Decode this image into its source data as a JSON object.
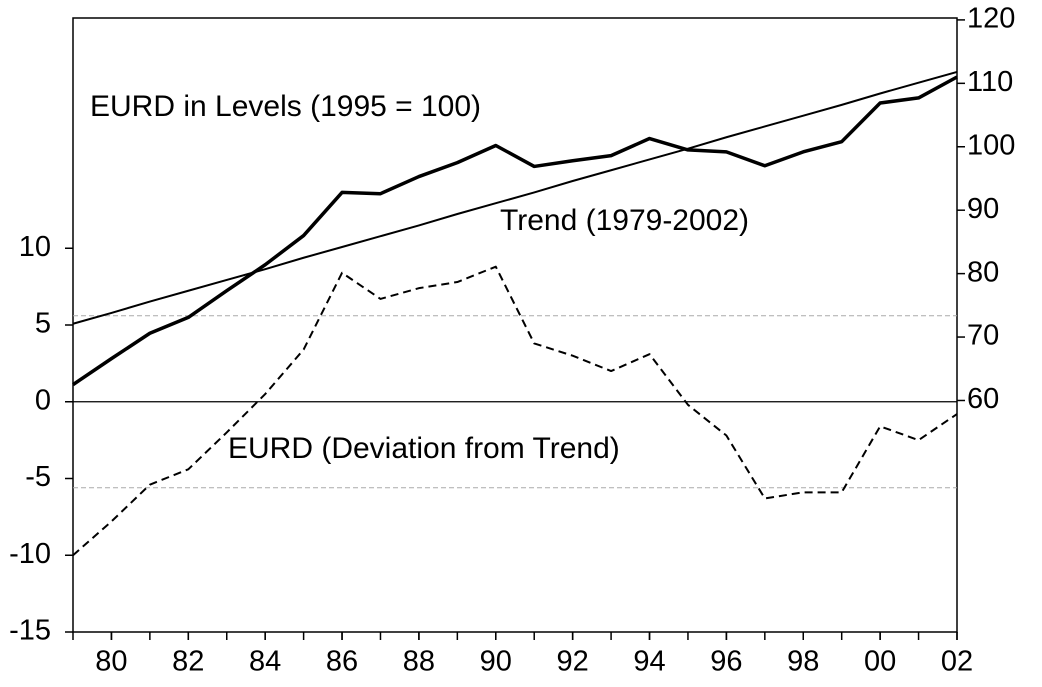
{
  "chart_data": {
    "type": "line",
    "annotations": [
      "EURD in Levels (1995 = 100)",
      "Trend (1979-2002)",
      "EURD (Deviation from Trend)"
    ],
    "x": [
      1979,
      1980,
      1981,
      1982,
      1983,
      1984,
      1985,
      1986,
      1987,
      1988,
      1989,
      1990,
      1991,
      1992,
      1993,
      1994,
      1995,
      1996,
      1997,
      1998,
      1999,
      2000,
      2001,
      2002
    ],
    "series": [
      {
        "name": "EURD in Levels (1995 = 100)",
        "axis": "y2",
        "color": "#000000",
        "style": "solid",
        "width": 3.5,
        "values": [
          62.5,
          66.6,
          70.6,
          73.1,
          77.3,
          81.4,
          86.0,
          92.8,
          92.6,
          95.3,
          97.5,
          100.2,
          96.9,
          97.8,
          98.6,
          101.3,
          99.5,
          99.2,
          97.0,
          99.2,
          100.8,
          106.9,
          107.7,
          111.0
        ]
      },
      {
        "name": "Trend (1979-2002)",
        "axis": "y2",
        "color": "#000000",
        "style": "solid",
        "width": 2,
        "values": [
          72.1,
          73.8,
          75.6,
          77.3,
          79.0,
          80.7,
          82.5,
          84.2,
          85.9,
          87.6,
          89.4,
          91.1,
          92.8,
          94.6,
          96.3,
          98.0,
          99.7,
          101.5,
          103.2,
          104.9,
          106.6,
          108.4,
          110.1,
          111.8
        ]
      },
      {
        "name": "EURD (Deviation from Trend)",
        "axis": "y",
        "color": "#000000",
        "style": "dashed",
        "width": 2,
        "values": [
          -10.0,
          -7.8,
          -5.4,
          -4.4,
          -2.0,
          0.5,
          3.4,
          8.4,
          6.7,
          7.4,
          7.8,
          8.8,
          3.8,
          3.0,
          2.0,
          3.1,
          -0.2,
          -2.2,
          -6.3,
          -5.9,
          -5.9,
          -1.6,
          -2.5,
          -0.8
        ]
      }
    ],
    "xlim": [
      1979,
      2002
    ],
    "xticks": [
      {
        "value": 1980,
        "label": "80"
      },
      {
        "value": 1982,
        "label": "82"
      },
      {
        "value": 1984,
        "label": "84"
      },
      {
        "value": 1986,
        "label": "86"
      },
      {
        "value": 1988,
        "label": "88"
      },
      {
        "value": 1990,
        "label": "90"
      },
      {
        "value": 1992,
        "label": "92"
      },
      {
        "value": 1994,
        "label": "94"
      },
      {
        "value": 1996,
        "label": "96"
      },
      {
        "value": 1998,
        "label": "98"
      },
      {
        "value": 2000,
        "label": "00"
      },
      {
        "value": 2002,
        "label": "02"
      }
    ],
    "ylim": [
      -15,
      25
    ],
    "yticks": [
      -15,
      -10,
      -5,
      0,
      5,
      10
    ],
    "y2lim": [
      23.5,
      120.3
    ],
    "y2ticks": [
      60,
      70,
      80,
      90,
      100,
      110,
      120
    ],
    "hlines": [
      {
        "value": 0,
        "style": "solid",
        "color": "#000000"
      },
      {
        "value": 5.6,
        "style": "dashed",
        "color": "#aaaaaa"
      },
      {
        "value": -5.6,
        "style": "dashed",
        "color": "#aaaaaa"
      }
    ]
  }
}
